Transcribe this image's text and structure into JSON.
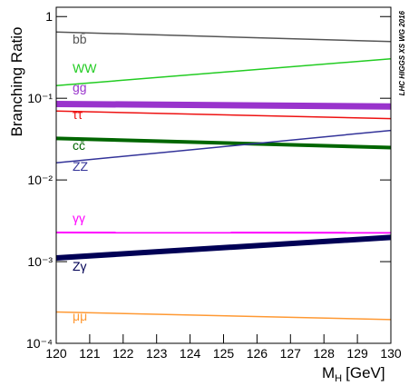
{
  "chart_data": {
    "type": "line",
    "ylabel": "Branching Ratio",
    "xlabel_main": "M",
    "xlabel_sub": "H",
    "xlabel_unit": "[GeV]",
    "annotation": "LHC HIGGS XS WG 2016",
    "x": [
      120,
      130
    ],
    "xlim": [
      120,
      130
    ],
    "xticks": [
      120,
      121,
      122,
      123,
      124,
      125,
      126,
      127,
      128,
      129,
      130
    ],
    "ylim": [
      0.0001,
      1.3
    ],
    "log_y": true,
    "yticks": [
      {
        "value": 0.0001,
        "label": "10⁻⁴"
      },
      {
        "value": 0.001,
        "label": "10⁻³"
      },
      {
        "value": 0.01,
        "label": "10⁻²"
      },
      {
        "value": 0.1,
        "label": "10⁻¹"
      },
      1
    ],
    "series": [
      {
        "name": "bb̄",
        "color": "#555555",
        "width": 1.5,
        "values": [
          0.648,
          0.494
        ]
      },
      {
        "name": "WW",
        "color": "#22cc22",
        "width": 1.5,
        "values": [
          0.143,
          0.304
        ]
      },
      {
        "name": "gg",
        "color": "#9933cc",
        "width": 7,
        "values": [
          0.0852,
          0.0793
        ]
      },
      {
        "name": "ττ",
        "color": "#ee1111",
        "width": 1.5,
        "values": [
          0.0698,
          0.0563
        ]
      },
      {
        "name": "cc̄",
        "color": "#006600",
        "width": 4,
        "values": [
          0.0323,
          0.0249
        ]
      },
      {
        "name": "ZZ",
        "color": "#333399",
        "width": 1.5,
        "values": [
          0.0162,
          0.0404
        ]
      },
      {
        "name": "γγ",
        "color": "#ff00ff",
        "width": 2,
        "values": [
          0.00227,
          0.00226
        ]
      },
      {
        "name": "Zγ",
        "color": "#000055",
        "width": 6,
        "values": [
          0.00111,
          0.00198
        ]
      },
      {
        "name": "μμ",
        "color": "#ff9933",
        "width": 1.5,
        "values": [
          0.000242,
          0.000195
        ]
      }
    ]
  }
}
